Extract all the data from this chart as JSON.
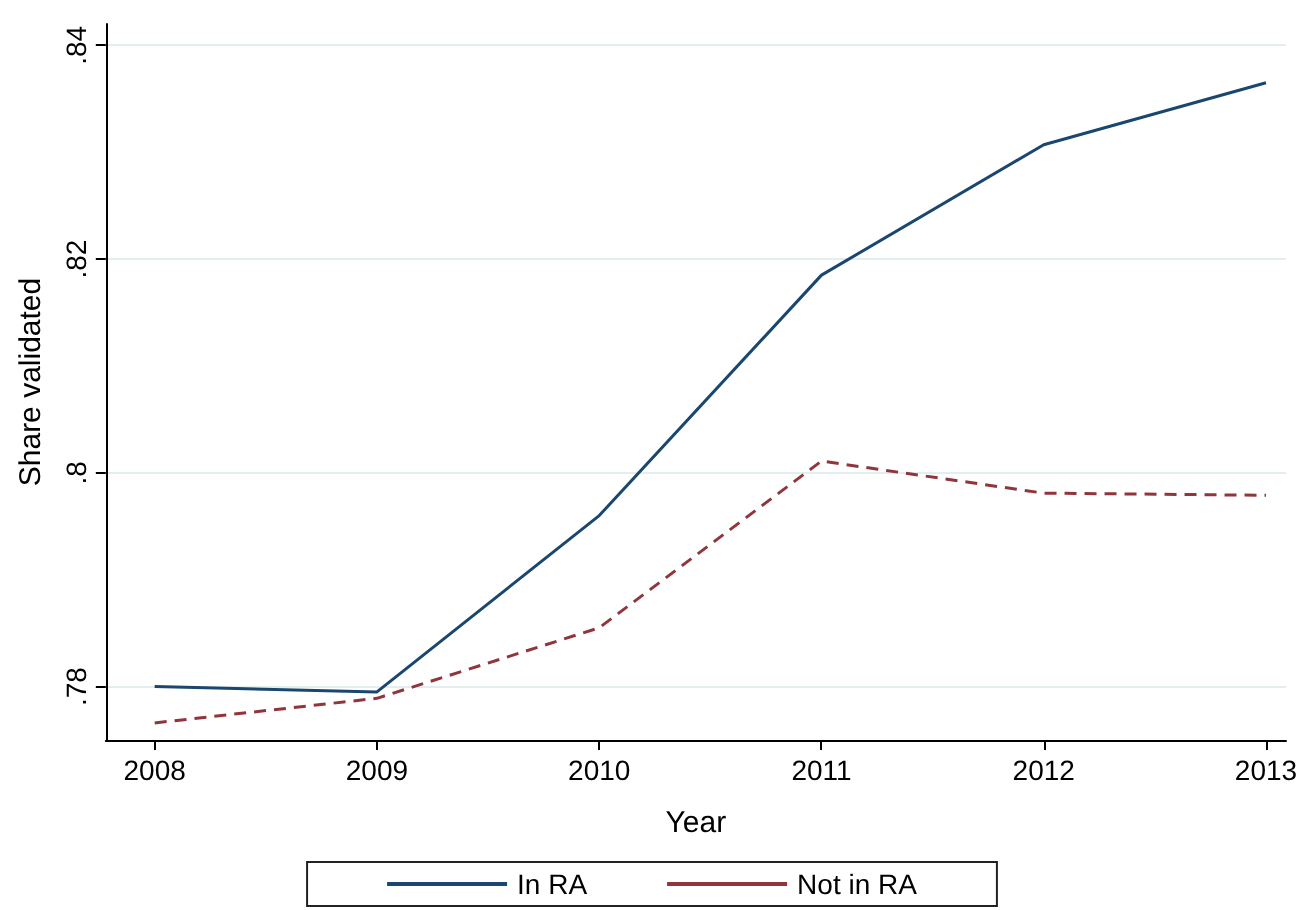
{
  "chart_data": {
    "type": "line",
    "xlabel": "Year",
    "ylabel": "Share validated",
    "x": [
      2008,
      2009,
      2010,
      2011,
      2012,
      2013
    ],
    "series": [
      {
        "name": "In RA",
        "color": "#1a476f",
        "line_style": "solid",
        "values": [
          0.78,
          0.7795,
          0.796,
          0.8185,
          0.8307,
          0.8365
        ]
      },
      {
        "name": "Not in RA",
        "color": "#90353b",
        "line_style": "dashed",
        "values": [
          0.7766,
          0.7789,
          0.7855,
          0.8011,
          0.7981,
          0.7979
        ]
      }
    ],
    "xlim": [
      2007.78,
      2013.09
    ],
    "xticks": [
      2008,
      2009,
      2010,
      2011,
      2012,
      2013
    ],
    "ylim": [
      0.775,
      0.842
    ],
    "yticks": [
      {
        "value": 0.78,
        "label": ".78"
      },
      {
        "value": 0.8,
        "label": ".8"
      },
      {
        "value": 0.82,
        "label": ".82"
      },
      {
        "value": 0.84,
        "label": ".84"
      }
    ],
    "grid": "y",
    "legend": "bottom",
    "marker": "none"
  }
}
